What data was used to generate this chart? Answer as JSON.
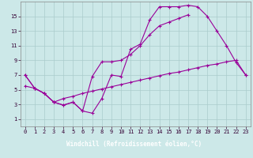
{
  "xlabel": "Windchill (Refroidissement éolien,°C)",
  "bg_color": "#cce8e8",
  "line_color": "#990099",
  "grid_color": "#aacccc",
  "xlim": [
    -0.5,
    23.5
  ],
  "ylim": [
    0,
    17
  ],
  "xticks": [
    0,
    1,
    2,
    3,
    4,
    5,
    6,
    7,
    8,
    9,
    10,
    11,
    12,
    13,
    14,
    15,
    16,
    17,
    18,
    19,
    20,
    21,
    22,
    23
  ],
  "yticks": [
    1,
    3,
    5,
    7,
    9,
    11,
    13,
    15
  ],
  "s1_x": [
    0,
    1,
    2,
    3,
    4,
    5,
    6,
    7,
    8,
    9,
    10,
    11,
    12,
    13,
    14,
    15,
    16,
    17,
    18,
    19,
    20,
    21,
    22,
    23
  ],
  "s1_y": [
    7.0,
    5.2,
    4.5,
    3.3,
    2.9,
    3.3,
    2.1,
    1.8,
    3.8,
    7.0,
    6.8,
    10.5,
    11.2,
    14.5,
    16.3,
    16.3,
    16.3,
    16.5,
    16.3,
    15.0,
    13.0,
    11.0,
    8.7,
    7.0
  ],
  "s2_x": [
    0,
    1,
    2,
    3,
    4,
    5,
    6,
    7,
    8,
    9,
    10,
    11,
    12,
    13,
    14,
    15,
    16,
    17,
    18,
    19,
    20,
    21,
    22,
    23
  ],
  "s2_y": [
    7.0,
    5.2,
    4.5,
    3.3,
    2.9,
    3.3,
    2.1,
    6.8,
    8.8,
    8.8,
    9.0,
    9.8,
    11.0,
    12.5,
    13.7,
    14.2,
    14.7,
    15.2,
    null,
    null,
    null,
    null,
    null,
    null
  ],
  "s3_x": [
    0,
    1,
    2,
    3,
    4,
    5,
    6,
    7,
    8,
    9,
    10,
    11,
    12,
    13,
    14,
    15,
    16,
    17,
    18,
    19,
    20,
    21,
    22,
    23
  ],
  "s3_y": [
    5.5,
    5.2,
    4.5,
    3.3,
    3.8,
    4.1,
    4.5,
    4.8,
    5.1,
    5.4,
    5.7,
    6.0,
    6.3,
    6.6,
    6.9,
    7.2,
    7.4,
    7.7,
    8.0,
    8.3,
    8.5,
    8.8,
    9.0,
    7.0
  ]
}
